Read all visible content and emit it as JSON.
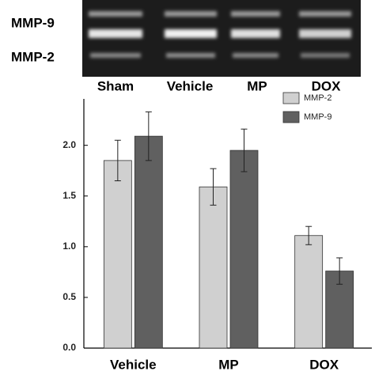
{
  "gel": {
    "row_labels": [
      "MMP-9",
      "MMP-2"
    ],
    "lane_labels": [
      "Sham",
      "Vehicle",
      "MP",
      "DOX"
    ]
  },
  "chart_data": {
    "type": "bar",
    "categories": [
      "Vehicle",
      "MP",
      "DOX"
    ],
    "series": [
      {
        "name": "MMP-2",
        "color": "#d0d0d0",
        "values": [
          1.85,
          1.59,
          1.11
        ],
        "errors": [
          0.2,
          0.18,
          0.09
        ]
      },
      {
        "name": "MMP-9",
        "color": "#606060",
        "values": [
          2.09,
          1.95,
          0.76
        ],
        "errors": [
          0.24,
          0.21,
          0.13
        ]
      }
    ],
    "ylim": [
      0,
      2.45
    ],
    "yticks": [
      {
        "value": 0,
        "label": "0.0"
      },
      {
        "value": 0.5,
        "label": "0.5"
      },
      {
        "value": 1,
        "label": "1.0"
      },
      {
        "value": 1.5,
        "label": "1.5"
      },
      {
        "value": 2,
        "label": "2.0"
      }
    ],
    "legend": "top-right",
    "grid": false
  }
}
